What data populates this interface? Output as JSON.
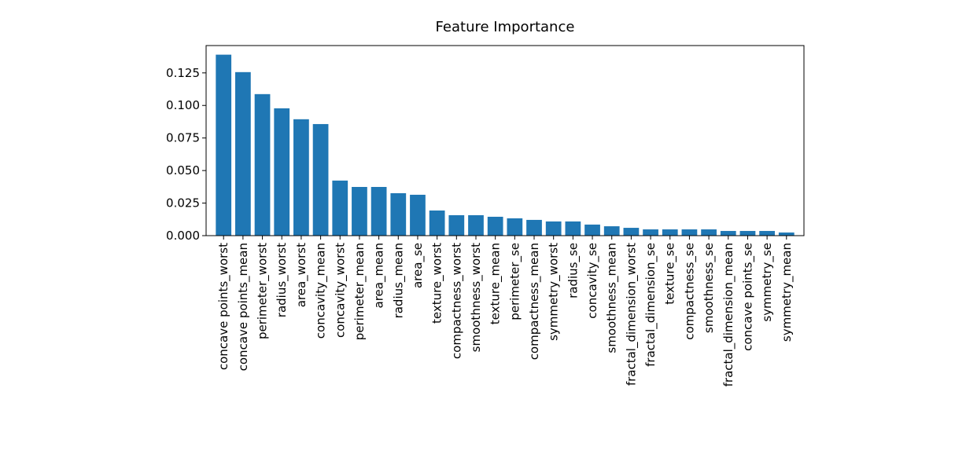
{
  "chart_data": {
    "type": "bar",
    "title": "Feature Importance",
    "categories": [
      "concave points_worst",
      "concave points_mean",
      "perimeter_worst",
      "radius_worst",
      "area_worst",
      "concavity_mean",
      "concavity_worst",
      "perimeter_mean",
      "area_mean",
      "radius_mean",
      "area_se",
      "texture_worst",
      "compactness_worst",
      "smoothness_worst",
      "texture_mean",
      "perimeter_se",
      "compactness_mean",
      "symmetry_worst",
      "radius_se",
      "concavity_se",
      "smoothness_mean",
      "fractal_dimension_worst",
      "fractal_dimension_se",
      "texture_se",
      "compactness_se",
      "smoothness_se",
      "fractal_dimension_mean",
      "concave points_se",
      "symmetry_se",
      "symmetry_mean"
    ],
    "values": [
      0.139,
      0.1256,
      0.1087,
      0.0978,
      0.0894,
      0.0857,
      0.0423,
      0.0374,
      0.0374,
      0.0326,
      0.0314,
      0.0193,
      0.0157,
      0.0157,
      0.0145,
      0.0133,
      0.0121,
      0.0109,
      0.0109,
      0.0085,
      0.0072,
      0.006,
      0.0048,
      0.0048,
      0.0048,
      0.0048,
      0.0036,
      0.0036,
      0.0036,
      0.0024
    ],
    "color": "#1f77b4",
    "ylim": [
      0,
      0.146
    ],
    "yticks": [
      {
        "value": 0,
        "label": "0.000"
      },
      {
        "value": 0.025,
        "label": "0.025"
      },
      {
        "value": 0.05,
        "label": "0.050"
      },
      {
        "value": 0.075,
        "label": "0.075"
      },
      {
        "value": 0.1,
        "label": "0.100"
      },
      {
        "value": 0.125,
        "label": "0.125"
      }
    ],
    "grid": false
  }
}
